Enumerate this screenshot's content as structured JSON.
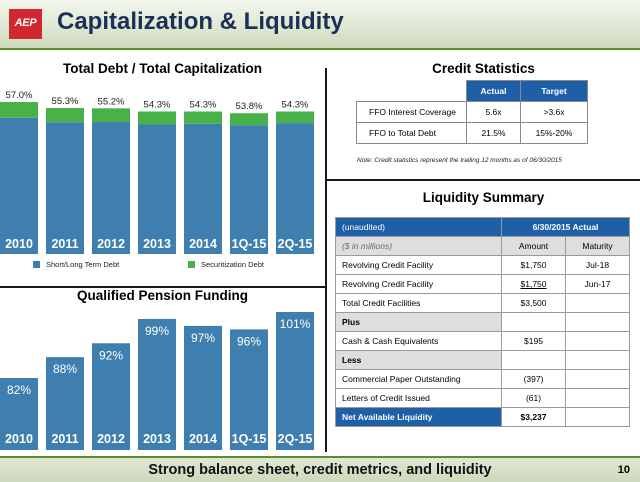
{
  "header": {
    "logo_text": "AEP",
    "title": "Capitalization & Liquidity"
  },
  "colors": {
    "blue": "#3e7fb0",
    "green": "#48b248",
    "header_blue": "#1f5fa8"
  },
  "debt_chart": {
    "title": "Total Debt / Total Capitalization",
    "legend": [
      {
        "label": "Short/Long Term Debt",
        "color": "#3e7fb0"
      },
      {
        "label": "Securitization Debt",
        "color": "#48b248"
      }
    ]
  },
  "pension_chart": {
    "title": "Qualified Pension Funding"
  },
  "chart_data": [
    {
      "type": "bar",
      "stacked": true,
      "title": "Total Debt / Total Capitalization",
      "categories": [
        "2010",
        "2011",
        "2012",
        "2013",
        "2014",
        "1Q-15",
        "2Q-15"
      ],
      "totals": [
        "57.0%",
        "55.3%",
        "55.2%",
        "54.3%",
        "54.3%",
        "53.8%",
        "54.3%"
      ],
      "series": [
        {
          "name": "Short/Long Term Debt",
          "values": [
            52.5,
            51.2,
            51.3,
            50.6,
            50.8,
            50.4,
            51.0
          ]
        },
        {
          "name": "Securitization Debt",
          "values": [
            4.5,
            4.1,
            3.9,
            3.7,
            3.5,
            3.4,
            3.3
          ]
        }
      ],
      "legend_position": "bottom"
    },
    {
      "type": "bar",
      "title": "Qualified Pension Funding",
      "categories": [
        "2010",
        "2011",
        "2012",
        "2013",
        "2014",
        "1Q-15",
        "2Q-15"
      ],
      "values": [
        82,
        88,
        92,
        99,
        97,
        96,
        101
      ],
      "labels": [
        "82%",
        "88%",
        "92%",
        "99%",
        "97%",
        "96%",
        "101%"
      ]
    }
  ],
  "credit_stats": {
    "title": "Credit Statistics",
    "columns": [
      "Actual",
      "Target"
    ],
    "rows": [
      {
        "label": "FFO Interest Coverage",
        "actual": "5.6x",
        "target": ">3.6x"
      },
      {
        "label": "FFO to Total Debt",
        "actual": "21.5%",
        "target": "15%-20%"
      }
    ],
    "note": "Note: Credit statistics represent the trailing 12 months as of 06/30/2015"
  },
  "liquidity": {
    "title": "Liquidity Summary",
    "header_left": "(unaudited)",
    "header_right": "6/30/2015 Actual",
    "sub_left": "($ in millions)",
    "col_amount": "Amount",
    "col_maturity": "Maturity",
    "rows": [
      {
        "label": "Revolving Credit Facility",
        "amount": "$1,750",
        "maturity": "Jul-18"
      },
      {
        "label": "Revolving Credit Facility",
        "amount": "$1,750",
        "maturity": "Jun-17"
      },
      {
        "label": "Total Credit Facilities",
        "amount": "$3,500",
        "maturity": ""
      },
      {
        "label": "Plus",
        "amount": "",
        "maturity": ""
      },
      {
        "label": "Cash & Cash Equivalents",
        "amount": "$195",
        "maturity": ""
      },
      {
        "label": "Less",
        "amount": "",
        "maturity": ""
      },
      {
        "label": "Commercial Paper Outstanding",
        "amount": "(397)",
        "maturity": ""
      },
      {
        "label": "Letters of Credit Issued",
        "amount": "(61)",
        "maturity": ""
      },
      {
        "label": "Net Available Liquidity",
        "amount": "$3,237",
        "maturity": ""
      }
    ]
  },
  "footer": {
    "text": "Strong balance sheet, credit metrics, and liquidity",
    "page": "10"
  }
}
